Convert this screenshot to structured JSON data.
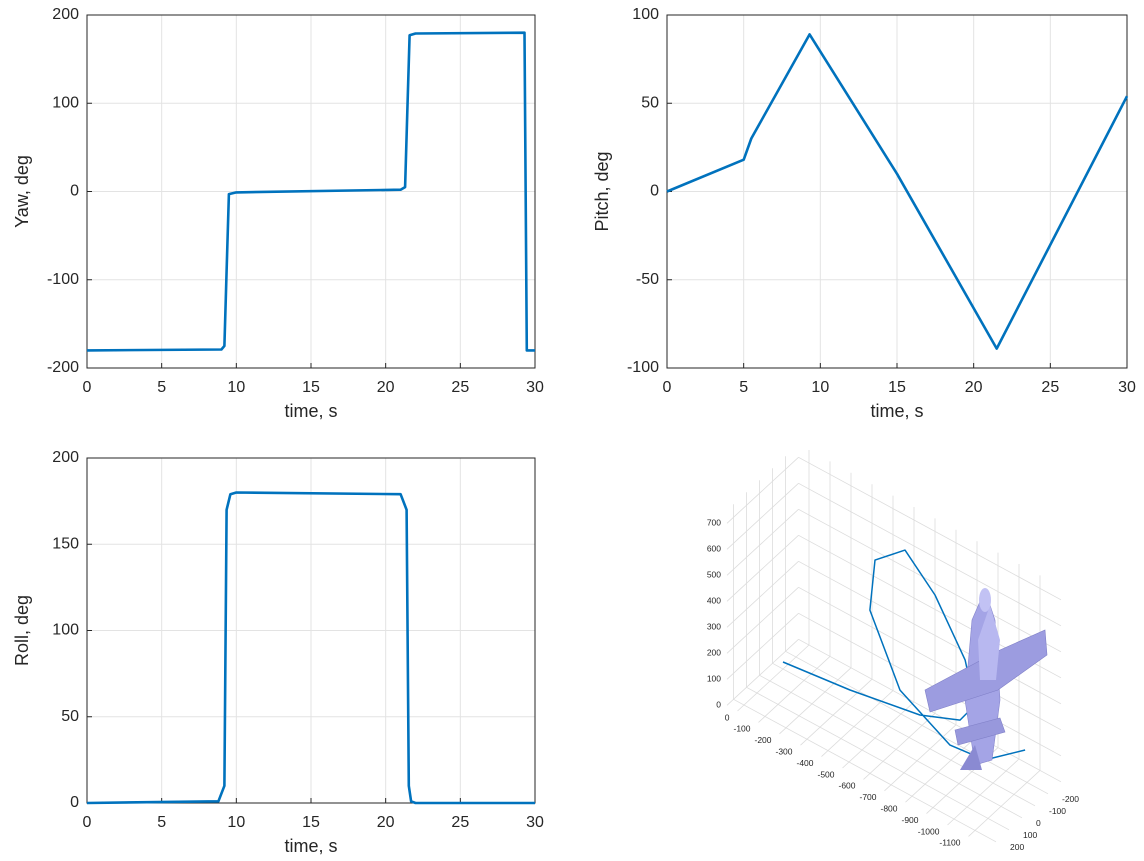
{
  "chart_data": [
    {
      "type": "line",
      "xlabel": "time, s",
      "ylabel": "Yaw, deg",
      "color": "#0072bd",
      "grid": true,
      "x": [
        0,
        9,
        9.2,
        9.35,
        9.5,
        10,
        21,
        21.3,
        21.45,
        21.6,
        22,
        29.3,
        29.45,
        30
      ],
      "values": [
        -180,
        -179,
        -175,
        -90,
        -3,
        -1,
        2,
        5,
        90,
        177,
        179,
        180,
        -180,
        -180
      ],
      "xlim": [
        0,
        30
      ],
      "ylim": [
        -200,
        200
      ],
      "xticks": [
        0,
        5,
        10,
        15,
        20,
        25,
        30
      ],
      "yticks": [
        -200,
        -100,
        0,
        100,
        200
      ]
    },
    {
      "type": "line",
      "xlabel": "time, s",
      "ylabel": "Pitch, deg",
      "color": "#0072bd",
      "grid": true,
      "x": [
        0,
        5,
        5.5,
        9.3,
        15,
        21.5,
        30
      ],
      "values": [
        0,
        18,
        30,
        89,
        10,
        -89,
        54
      ],
      "xlim": [
        0,
        30
      ],
      "ylim": [
        -100,
        100
      ],
      "xticks": [
        0,
        5,
        10,
        15,
        20,
        25,
        30
      ],
      "yticks": [
        -100,
        -50,
        0,
        50,
        100
      ]
    },
    {
      "type": "line",
      "xlabel": "time, s",
      "ylabel": "Roll, deg",
      "color": "#0072bd",
      "grid": true,
      "x": [
        0,
        8.8,
        9.2,
        9.35,
        9.6,
        10,
        21,
        21.4,
        21.55,
        21.7,
        22,
        30
      ],
      "values": [
        0,
        1,
        10,
        170,
        179,
        180,
        179,
        170,
        10,
        1,
        0,
        0
      ],
      "xlim": [
        0,
        30
      ],
      "ylim": [
        0,
        200
      ],
      "xticks": [
        0,
        5,
        10,
        15,
        20,
        25,
        30
      ],
      "yticks": [
        0,
        50,
        100,
        150,
        200
      ]
    },
    {
      "type": "line3d",
      "color": "#0072bd",
      "grid": true,
      "x": [
        -100,
        -100,
        -100,
        -100,
        -100,
        -100,
        -100,
        -100,
        -100,
        -100,
        -100,
        -100,
        -100,
        -250
      ],
      "y": [
        0,
        -319,
        -652,
        -843,
        -914,
        -867,
        -724,
        -581,
        -438,
        -414,
        -557,
        -795,
        -962,
        -1060
      ],
      "z": [
        27,
        59,
        109,
        173,
        262,
        415,
        602,
        712,
        611,
        408,
        163,
        56,
        72,
        84
      ],
      "xlim": [
        -300,
        250
      ],
      "ylim": [
        -1200,
        50
      ],
      "zlim": [
        0,
        750
      ],
      "xticks": [
        -200,
        -100,
        0,
        100,
        200
      ],
      "yticks": [
        0,
        -100,
        -200,
        -300,
        -400,
        -500,
        -600,
        -700,
        -800,
        -900,
        -1000,
        -1100
      ],
      "zticks": [
        0,
        100,
        200,
        300,
        400,
        500,
        600,
        700
      ]
    }
  ]
}
